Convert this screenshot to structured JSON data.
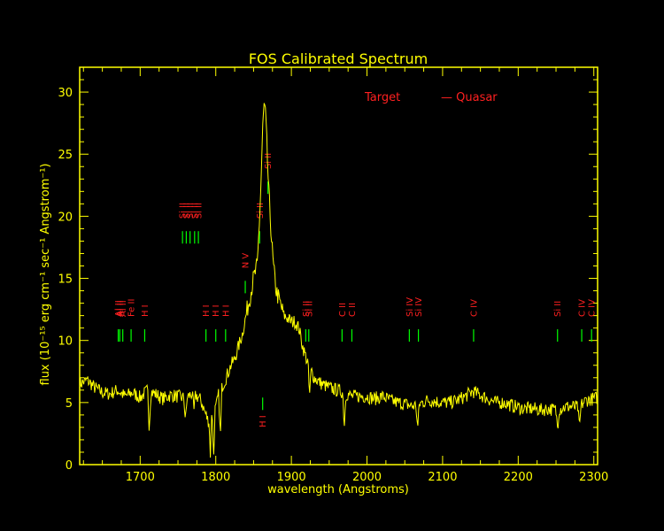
{
  "chart_data": {
    "type": "line",
    "title": "FOS Calibrated Spectrum",
    "xlabel": "wavelength (Angstroms)",
    "ylabel": "flux (10⁻¹⁵ erg cm⁻¹ sec⁻¹ Angstrom⁻¹)",
    "xlim": [
      1620,
      2305
    ],
    "ylim": [
      0,
      32
    ],
    "xticks": [
      1700,
      1800,
      1900,
      2000,
      2100,
      2200,
      2300
    ],
    "yticks": [
      0,
      5,
      10,
      15,
      20,
      25,
      30
    ],
    "grid": false,
    "legend": {
      "target_label": "Target",
      "object_label": "— Quasar",
      "position": "top-right"
    },
    "colors": {
      "background": "#000000",
      "axes": "#ffff00",
      "spectrum": "#ffff00",
      "line_marks": "#00ff00",
      "line_labels": "#ff2020"
    },
    "series": [
      {
        "x": [
          1620,
          1630,
          1640,
          1650,
          1660,
          1670,
          1680,
          1690,
          1700,
          1710,
          1720,
          1730,
          1740,
          1750,
          1760,
          1770,
          1780,
          1790,
          1795,
          1800,
          1805,
          1810,
          1815,
          1820,
          1825,
          1830,
          1835,
          1840,
          1845,
          1850,
          1855,
          1858,
          1860,
          1862,
          1864,
          1866,
          1868,
          1870,
          1873,
          1876,
          1880,
          1885,
          1890,
          1895,
          1900,
          1905,
          1910,
          1915,
          1920,
          1925,
          1930,
          1940,
          1950,
          1960,
          1970,
          1980,
          1990,
          2000,
          2010,
          2020,
          2030,
          2040,
          2050,
          2060,
          2070,
          2080,
          2090,
          2100,
          2110,
          2120,
          2130,
          2140,
          2150,
          2160,
          2170,
          2180,
          2190,
          2200,
          2210,
          2220,
          2230,
          2240,
          2250,
          2260,
          2270,
          2280,
          2290,
          2300,
          2305
        ],
        "y": [
          6.5,
          6.8,
          6.2,
          5.8,
          5.7,
          6.0,
          5.5,
          5.8,
          5.4,
          6.0,
          5.7,
          5.3,
          5.6,
          5.5,
          5.3,
          5.8,
          5.2,
          3.5,
          5.5,
          4.5,
          6.0,
          6.5,
          7.2,
          8.0,
          8.5,
          9.5,
          10.5,
          12.0,
          13.5,
          15.0,
          16.0,
          20.0,
          23.0,
          27.0,
          29.0,
          28.0,
          25.0,
          22.0,
          19.0,
          16.0,
          14.0,
          13.0,
          12.0,
          11.8,
          11.5,
          11.5,
          11.0,
          9.5,
          8.5,
          7.8,
          7.0,
          6.5,
          6.2,
          6.0,
          5.8,
          5.5,
          5.5,
          5.5,
          5.3,
          5.5,
          5.2,
          5.0,
          4.9,
          4.7,
          4.9,
          5.2,
          5.1,
          5.0,
          5.0,
          5.2,
          5.5,
          5.9,
          5.6,
          5.3,
          5.0,
          5.0,
          4.8,
          4.6,
          4.5,
          4.5,
          4.4,
          4.5,
          4.4,
          4.6,
          4.7,
          4.6,
          5.2,
          5.3,
          5.4
        ]
      }
    ],
    "absorption_dips": [
      {
        "x": 1712,
        "y": 3.0
      },
      {
        "x": 1760,
        "y": 3.5
      },
      {
        "x": 1771,
        "y": 4.2
      },
      {
        "x": 1793,
        "y": 0.6
      },
      {
        "x": 1797,
        "y": 0.3
      },
      {
        "x": 1806,
        "y": 2.0
      },
      {
        "x": 1924,
        "y": 5.5
      },
      {
        "x": 1970,
        "y": 3.2
      },
      {
        "x": 2067,
        "y": 2.8
      },
      {
        "x": 2252,
        "y": 3.0
      },
      {
        "x": 2281,
        "y": 2.8
      }
    ],
    "spectral_lines": [
      {
        "label": "Al II",
        "x": 1671,
        "pos": "upper"
      },
      {
        "label": "Al II",
        "x": 1677,
        "pos": "upper"
      },
      {
        "label": "Fe II",
        "x": 1688,
        "pos": "upper"
      },
      {
        "label": "Al II",
        "x": 1673,
        "pos": "upper"
      },
      {
        "label": "H I",
        "x": 1706,
        "pos": "upper"
      },
      {
        "label": "Si II",
        "x": 1756,
        "pos": "upper"
      },
      {
        "label": "Si II",
        "x": 1761,
        "pos": "upper"
      },
      {
        "label": "Si II",
        "x": 1766,
        "pos": "upper"
      },
      {
        "label": "Si II",
        "x": 1772,
        "pos": "upper"
      },
      {
        "label": "Si II",
        "x": 1777,
        "pos": "upper"
      },
      {
        "label": "H I",
        "x": 1787,
        "pos": "upper"
      },
      {
        "label": "H I",
        "x": 1800,
        "pos": "upper"
      },
      {
        "label": "H I",
        "x": 1813,
        "pos": "upper"
      },
      {
        "label": "N V",
        "x": 1839,
        "pos": "upper"
      },
      {
        "label": "Si II",
        "x": 1858,
        "pos": "upper"
      },
      {
        "label": "Si II",
        "x": 1869,
        "pos": "upper"
      },
      {
        "label": "Si II",
        "x": 1923,
        "pos": "upper"
      },
      {
        "label": "Si II",
        "x": 1919,
        "pos": "upper"
      },
      {
        "label": "C II",
        "x": 1967,
        "pos": "upper"
      },
      {
        "label": "C II",
        "x": 1980,
        "pos": "upper"
      },
      {
        "label": "Si IV",
        "x": 2056,
        "pos": "upper"
      },
      {
        "label": "Si IV",
        "x": 2068,
        "pos": "upper"
      },
      {
        "label": "C IV",
        "x": 2141,
        "pos": "upper"
      },
      {
        "label": "Si II",
        "x": 2252,
        "pos": "upper"
      },
      {
        "label": "C IV",
        "x": 2284,
        "pos": "upper"
      },
      {
        "label": "C IV",
        "x": 2297,
        "pos": "upper"
      },
      {
        "label": "H I",
        "x": 1862,
        "pos": "lower"
      }
    ]
  }
}
